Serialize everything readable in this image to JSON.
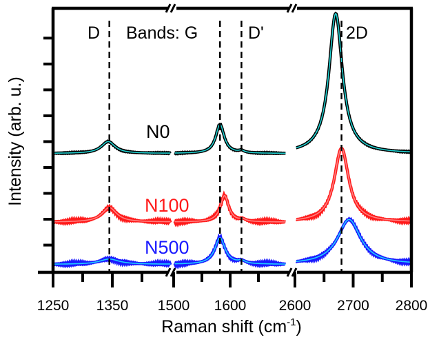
{
  "chart_data": {
    "type": "line",
    "title": "",
    "xlabel_main": "Raman shift (cm",
    "xlabel_sup": "-1",
    "xlabel_end": ")",
    "ylabel": "Intensity (arb. u.)",
    "x_segments": [
      {
        "range": [
          1250,
          1450
        ],
        "major_ticks": [
          1250,
          1350
        ],
        "minor_ticks": [
          1300,
          1400
        ]
      },
      {
        "range": [
          1500,
          1700
        ],
        "major_ticks": [
          1500,
          1600
        ],
        "minor_ticks": [
          1550,
          1650
        ]
      },
      {
        "range": [
          2600,
          2800
        ],
        "major_ticks": [
          2600,
          2700,
          2800
        ],
        "minor_ticks": [
          2650,
          2750
        ]
      }
    ],
    "tick_labels": [
      "1250",
      "1350",
      "1500",
      "1600",
      "2600",
      "2700",
      "2800"
    ],
    "ylim": [
      0,
      10
    ],
    "y_ticks": [
      1,
      2,
      3,
      4,
      5,
      6,
      7,
      8,
      9
    ],
    "band_lines": [
      {
        "name": "D",
        "x": 1345
      },
      {
        "name": "G",
        "x": 1582
      },
      {
        "name": "D'",
        "x": 1620
      },
      {
        "name": "2D",
        "x": 2680
      }
    ],
    "band_labels": {
      "d": "D",
      "bands_g": "Bands: G",
      "dprime": "D'",
      "twod": "2D"
    },
    "series": [
      {
        "name": "N0",
        "color": "#000000",
        "fit_color": "#20d0d0",
        "baseline": 4.5,
        "peaks": [
          {
            "x": 1343,
            "h": 0.45,
            "w": 14
          },
          {
            "x": 1582,
            "h": 1.1,
            "w": 9
          },
          {
            "x": 1620,
            "h": 0.08,
            "w": 6
          },
          {
            "x": 2670,
            "h": 5.3,
            "w": 14
          }
        ]
      },
      {
        "name": "N100",
        "color": "#ff1a1a",
        "fit_color": "#ff8080",
        "baseline": 1.9,
        "peaks": [
          {
            "x": 1345,
            "h": 0.55,
            "w": 15
          },
          {
            "x": 1590,
            "h": 1.0,
            "w": 9
          },
          {
            "x": 1622,
            "h": 0.08,
            "w": 6
          },
          {
            "x": 2680,
            "h": 2.8,
            "w": 15
          }
        ]
      },
      {
        "name": "N500",
        "color": "#1a1aff",
        "fit_color": "#20d0ff",
        "baseline": 0.3,
        "peaks": [
          {
            "x": 1345,
            "h": 0.2,
            "w": 20
          },
          {
            "x": 1582,
            "h": 1.0,
            "w": 11
          },
          {
            "x": 1620,
            "h": 0.1,
            "w": 8
          },
          {
            "x": 2693,
            "h": 1.7,
            "w": 24
          }
        ]
      }
    ]
  }
}
